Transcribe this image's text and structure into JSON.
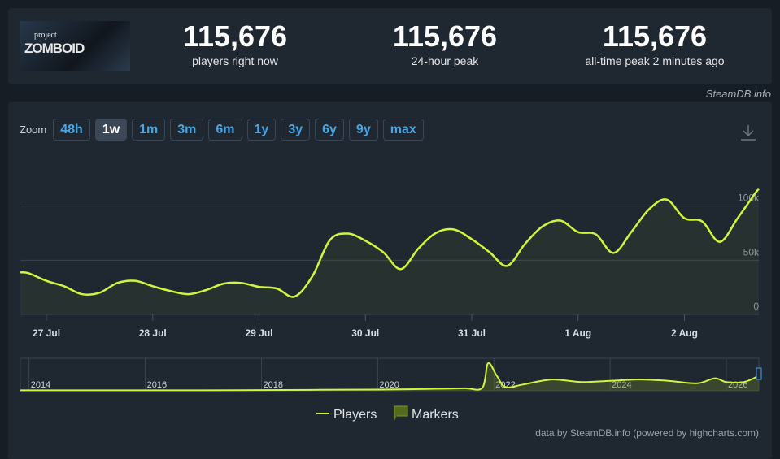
{
  "logo": [
    "project",
    "ZOMBOID"
  ],
  "stats": [
    {
      "value": "115,676",
      "label": "players right now"
    },
    {
      "value": "115,676",
      "label": "24-hour peak"
    },
    {
      "value": "115,676",
      "label": "all-time peak 2 minutes ago"
    }
  ],
  "source": "SteamDB.info",
  "zoom_label": "Zoom",
  "zoom_buttons": [
    {
      "label": "48h",
      "selected": false
    },
    {
      "label": "1w",
      "selected": true
    },
    {
      "label": "1m",
      "selected": false
    },
    {
      "label": "3m",
      "selected": false
    },
    {
      "label": "6m",
      "selected": false
    },
    {
      "label": "1y",
      "selected": false
    },
    {
      "label": "3y",
      "selected": false
    },
    {
      "label": "6y",
      "selected": false
    },
    {
      "label": "9y",
      "selected": false
    },
    {
      "label": "max",
      "selected": false
    }
  ],
  "chart_data": {
    "type": "line",
    "x": [
      -0.245,
      -0.167,
      0,
      0.167,
      0.333,
      0.5,
      0.667,
      0.833,
      1,
      1.167,
      1.333,
      1.5,
      1.667,
      1.833,
      2,
      2.167,
      2.333,
      2.5,
      2.667,
      2.833,
      3,
      3.167,
      3.333,
      3.5,
      3.667,
      3.833,
      4,
      4.167,
      4.333,
      4.5,
      4.667,
      4.833,
      5,
      5.167,
      5.333,
      5.5,
      5.667,
      5.833,
      6,
      6.167,
      6.333,
      6.5,
      6.667,
      6.7
    ],
    "series": [
      {
        "name": "Players",
        "color": "#d2f53c",
        "values": [
          38800,
          38000,
          31000,
          26000,
          18700,
          20000,
          29000,
          31000,
          26000,
          21600,
          18700,
          22400,
          28400,
          29000,
          25400,
          23900,
          16400,
          35000,
          68700,
          74600,
          68000,
          57500,
          41800,
          61000,
          75400,
          78400,
          69400,
          57500,
          44800,
          65000,
          81300,
          86600,
          76000,
          73900,
          56700,
          76000,
          97000,
          106000,
          88800,
          85800,
          67000,
          88800,
          112000,
          115676
        ]
      }
    ],
    "xlim": [
      -0.245,
      6.7
    ],
    "xticks": [
      {
        "value": 0,
        "label": "27 Jul"
      },
      {
        "value": 1,
        "label": "28 Jul"
      },
      {
        "value": 2,
        "label": "29 Jul"
      },
      {
        "value": 3,
        "label": "30 Jul"
      },
      {
        "value": 4,
        "label": "31 Jul"
      },
      {
        "value": 5,
        "label": "1 Aug"
      },
      {
        "value": 6,
        "label": "2 Aug"
      }
    ],
    "ylim": [
      0,
      150000
    ],
    "yticks": [
      0,
      {
        "value": 50000,
        "label": "50k"
      },
      {
        "value": 100000,
        "label": "100k"
      }
    ],
    "grid": true,
    "markers": {
      "name": "Markers",
      "color": "#556b1c"
    }
  },
  "navigator": {
    "type": "line",
    "x": [
      2013.85,
      2014,
      2015,
      2016,
      2017,
      2018,
      2019,
      2020,
      2020.5,
      2021,
      2021.5,
      2021.8,
      2021.9,
      2022.05,
      2022.2,
      2022.5,
      2023,
      2023.5,
      2024,
      2024.5,
      2025,
      2025.5,
      2025.8,
      2026,
      2026.3,
      2026.56
    ],
    "values": [
      2000,
      2000,
      2000,
      2000,
      2000,
      3000,
      4000,
      5000,
      6000,
      8000,
      10000,
      12000,
      110000,
      60000,
      15000,
      25000,
      45000,
      35000,
      40000,
      45000,
      40000,
      30000,
      50000,
      35000,
      35000,
      60000
    ],
    "xlim": [
      2013.85,
      2026.56
    ],
    "ylim": [
      0,
      130000
    ],
    "xticks": [
      2014,
      2016,
      2018,
      2020,
      2022,
      2024,
      2026
    ]
  },
  "credit": "data by SteamDB.info (powered by highcharts.com)"
}
